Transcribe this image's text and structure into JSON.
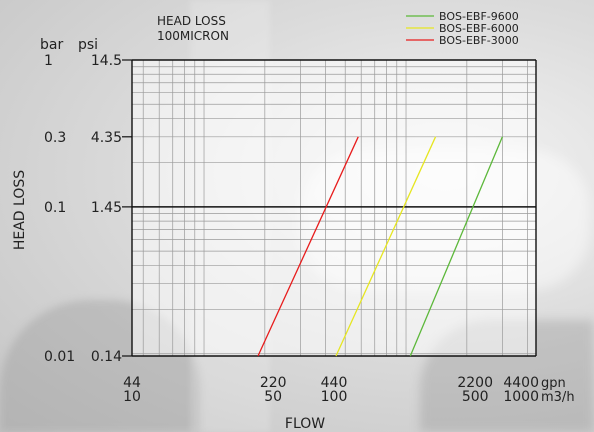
{
  "chart_data": {
    "type": "line",
    "title_lines": [
      "HEAD LOSS",
      "100MICRON"
    ],
    "xlabel": "FLOW",
    "ylabel": "HEAD LOSS",
    "y_unit_headers": [
      "bar",
      "psi"
    ],
    "x_unit_labels": [
      "gpn",
      "m3/h"
    ],
    "x_scale": "log",
    "y_scale": "log",
    "xlim": [
      44,
      4400
    ],
    "ylim": [
      0.14,
      14.5
    ],
    "x_ticks": [
      {
        "value": 44,
        "gpm": "44",
        "m3h": "10"
      },
      {
        "value": 220,
        "gpm": "220",
        "m3h": "50"
      },
      {
        "value": 440,
        "gpm": "440",
        "m3h": "100"
      },
      {
        "value": 2200,
        "gpm": "2200",
        "m3h": "500"
      },
      {
        "value": 4400,
        "gpm": "4400",
        "m3h": "1000"
      }
    ],
    "y_ticks": [
      {
        "value": 14.5,
        "bar": "1",
        "psi": "14.5"
      },
      {
        "value": 4.35,
        "bar": "0.3",
        "psi": "4.35"
      },
      {
        "value": 1.45,
        "bar": "0.1",
        "psi": "1.45"
      },
      {
        "value": 0.14,
        "bar": "0.01",
        "psi": "0.14"
      }
    ],
    "grid": true,
    "legend_position": "top-right",
    "series": [
      {
        "name": "BOS-EBF-9600",
        "color": "#5cb83a",
        "x": [
          1050,
          3000
        ],
        "y": [
          0.14,
          4.35
        ]
      },
      {
        "name": "BOS-EBF-6000",
        "color": "#e6e620",
        "x": [
          450,
          1400
        ],
        "y": [
          0.14,
          4.35
        ]
      },
      {
        "name": "BOS-EBF-3000",
        "color": "#e81c1c",
        "x": [
          185,
          580
        ],
        "y": [
          0.14,
          4.35
        ]
      }
    ]
  }
}
